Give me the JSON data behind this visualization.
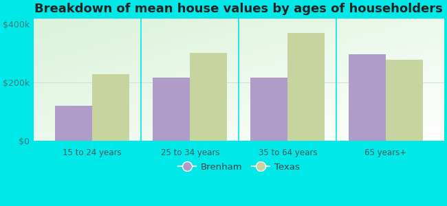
{
  "title": "Breakdown of mean house values by ages of householders",
  "categories": [
    "15 to 24 years",
    "25 to 34 years",
    "35 to 64 years",
    "65 years+"
  ],
  "brenham_values": [
    120000,
    215000,
    215000,
    295000
  ],
  "texas_values": [
    228000,
    300000,
    370000,
    278000
  ],
  "brenham_color": "#b09cc8",
  "texas_color": "#c8d4a0",
  "background_color": "#00e8e8",
  "ylim": [
    0,
    420000
  ],
  "yticks": [
    0,
    200000,
    400000
  ],
  "ytick_labels": [
    "$0",
    "$200k",
    "$400k"
  ],
  "legend_labels": [
    "Brenham",
    "Texas"
  ],
  "title_fontsize": 13,
  "bar_width": 0.38,
  "figsize": [
    6.5,
    3.0
  ],
  "dpi": 100
}
